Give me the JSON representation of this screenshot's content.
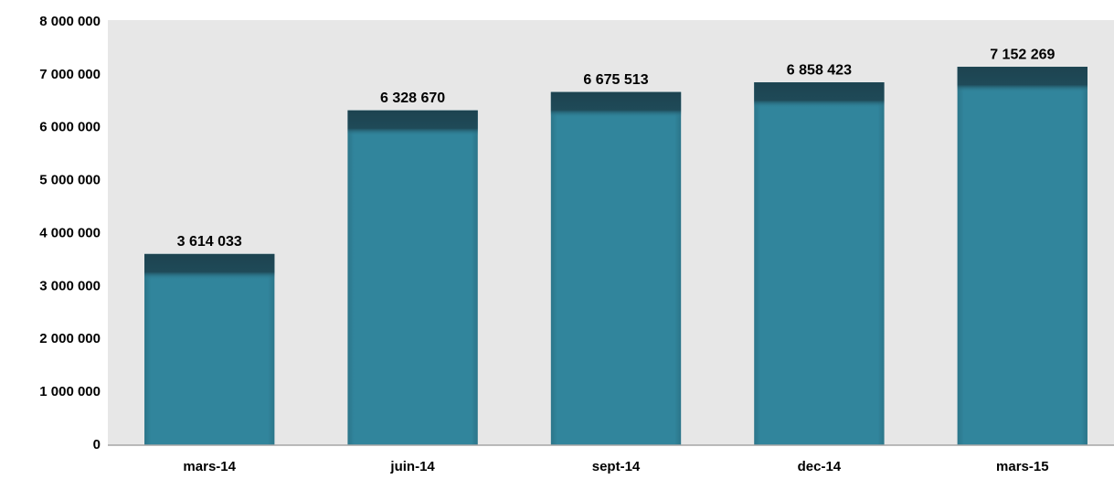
{
  "chart_data": {
    "type": "bar",
    "categories": [
      "mars-14",
      "juin-14",
      "sept-14",
      "dec-14",
      "mars-15"
    ],
    "values": [
      3614033,
      6328670,
      6675513,
      6858423,
      7152269
    ],
    "value_labels": [
      "3 614 033",
      "6 328 670",
      "6 675 513",
      "6 858 423",
      "7 152 269"
    ],
    "color": "#31859c",
    "ylim": [
      0,
      8000000
    ],
    "yticks": [
      {
        "value": 0,
        "label": "0"
      },
      {
        "value": 1000000,
        "label": "1 000 000"
      },
      {
        "value": 2000000,
        "label": "2 000 000"
      },
      {
        "value": 3000000,
        "label": "3 000 000"
      },
      {
        "value": 4000000,
        "label": "4 000 000"
      },
      {
        "value": 5000000,
        "label": "5 000 000"
      },
      {
        "value": 6000000,
        "label": "6 000 000"
      },
      {
        "value": 7000000,
        "label": "7 000 000"
      },
      {
        "value": 8000000,
        "label": "8 000 000"
      }
    ],
    "grid": false
  }
}
